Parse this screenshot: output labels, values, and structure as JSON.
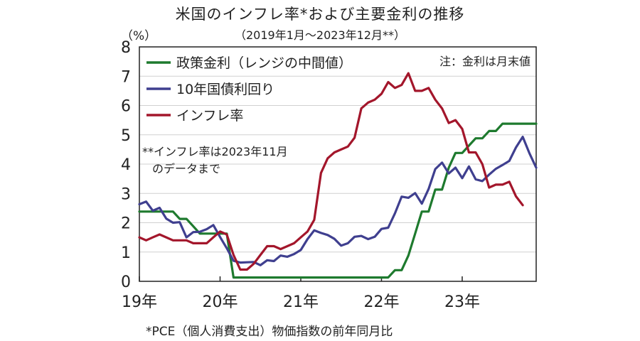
{
  "title": "米国のインフレ率*および主要金利の推移",
  "subtitle": "（2019年1月～2023年12月**）",
  "unit": "（%）",
  "footnote": "*PCE（個人消費支出）物価指数の前年同月比",
  "note": "注：金利は月末値",
  "annotation": [
    "**インフレ率は2023年11月",
    "のデータまで"
  ],
  "colors": {
    "policy": "#1e7a2e",
    "bond": "#3f3f8f",
    "inflation": "#a3162b",
    "grid": "#d0d0d0"
  },
  "chart_data": {
    "type": "line",
    "ylim": [
      0,
      8
    ],
    "xlim": [
      0,
      59
    ],
    "y_ticks": [
      "0",
      "1",
      "2",
      "3",
      "4",
      "5",
      "6",
      "7",
      "8"
    ],
    "x_ticks": [
      {
        "label": "19年",
        "month_index": 0
      },
      {
        "label": "20年",
        "month_index": 12
      },
      {
        "label": "21年",
        "month_index": 24
      },
      {
        "label": "22年",
        "month_index": 36
      },
      {
        "label": "23年",
        "month_index": 48
      }
    ],
    "grid": true,
    "legend_position": "top-left",
    "series": [
      {
        "name": "政策金利（レンジの中間値）",
        "color_key": "policy",
        "values": [
          2.38,
          2.38,
          2.38,
          2.38,
          2.38,
          2.38,
          2.13,
          2.13,
          1.88,
          1.63,
          1.63,
          1.63,
          1.63,
          1.63,
          0.13,
          0.13,
          0.13,
          0.13,
          0.13,
          0.13,
          0.13,
          0.13,
          0.13,
          0.13,
          0.13,
          0.13,
          0.13,
          0.13,
          0.13,
          0.13,
          0.13,
          0.13,
          0.13,
          0.13,
          0.13,
          0.13,
          0.13,
          0.13,
          0.38,
          0.38,
          0.88,
          1.63,
          2.38,
          2.38,
          3.13,
          3.13,
          3.88,
          4.38,
          4.38,
          4.63,
          4.88,
          4.88,
          5.13,
          5.13,
          5.38,
          5.38,
          5.38,
          5.38,
          5.38,
          5.38
        ]
      },
      {
        "name": "10年国債利回り",
        "color_key": "bond",
        "values": [
          2.63,
          2.72,
          2.41,
          2.51,
          2.14,
          2.0,
          2.02,
          1.5,
          1.68,
          1.69,
          1.78,
          1.92,
          1.51,
          1.13,
          0.7,
          0.64,
          0.65,
          0.66,
          0.55,
          0.72,
          0.69,
          0.88,
          0.84,
          0.93,
          1.07,
          1.44,
          1.74,
          1.65,
          1.58,
          1.45,
          1.22,
          1.3,
          1.52,
          1.55,
          1.44,
          1.52,
          1.79,
          1.83,
          2.32,
          2.89,
          2.85,
          3.01,
          2.65,
          3.15,
          3.83,
          4.05,
          3.68,
          3.88,
          3.52,
          3.92,
          3.48,
          3.42,
          3.64,
          3.84,
          3.97,
          4.11,
          4.57,
          4.93,
          4.37,
          3.88
        ]
      },
      {
        "name": "インフレ率",
        "color_key": "inflation",
        "values": [
          1.5,
          1.4,
          1.5,
          1.6,
          1.5,
          1.4,
          1.4,
          1.4,
          1.3,
          1.3,
          1.3,
          1.5,
          1.7,
          1.6,
          0.9,
          0.4,
          0.4,
          0.6,
          0.9,
          1.2,
          1.2,
          1.1,
          1.2,
          1.3,
          1.5,
          1.7,
          2.1,
          3.7,
          4.2,
          4.4,
          4.5,
          4.6,
          4.9,
          5.9,
          6.1,
          6.2,
          6.4,
          6.8,
          6.6,
          6.7,
          7.1,
          6.5,
          6.5,
          6.6,
          6.2,
          5.9,
          5.4,
          5.5,
          5.2,
          4.4,
          4.4,
          4.0,
          3.2,
          3.3,
          3.3,
          3.4,
          2.9,
          2.6
        ]
      }
    ]
  }
}
